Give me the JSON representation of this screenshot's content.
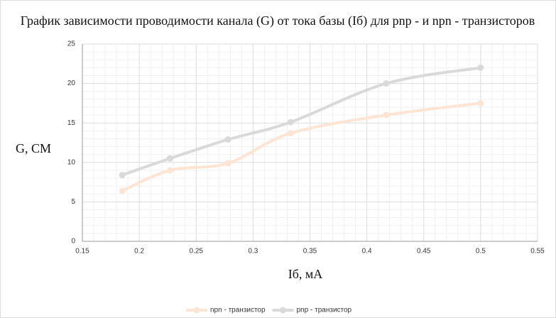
{
  "chart_data": {
    "type": "line",
    "title": "График зависимости проводимости канала (G) от тока базы (Iб) для pnp - и npn - транзисторов",
    "x_label": "Iб, мА",
    "y_label": "G, СМ",
    "x": [
      0.185,
      0.227,
      0.278,
      0.333,
      0.417,
      0.5
    ],
    "series": [
      {
        "name": "npn - транзистор",
        "color": "#fde4d3",
        "values": [
          6.4,
          9.0,
          9.9,
          13.7,
          16.0,
          17.5
        ]
      },
      {
        "name": "pnp - транзистор",
        "color": "#d9d9d9",
        "values": [
          8.4,
          10.5,
          12.9,
          15.1,
          20.0,
          22.0
        ]
      }
    ],
    "xlim": [
      0.15,
      0.55
    ],
    "xticks": [
      0.15,
      0.2,
      0.25,
      0.3,
      0.35,
      0.4,
      0.45,
      0.5,
      0.55
    ],
    "ylim": [
      0,
      25
    ],
    "yticks": [
      0,
      5,
      10,
      15,
      20,
      25
    ],
    "grid": true,
    "legend": "bottom"
  }
}
